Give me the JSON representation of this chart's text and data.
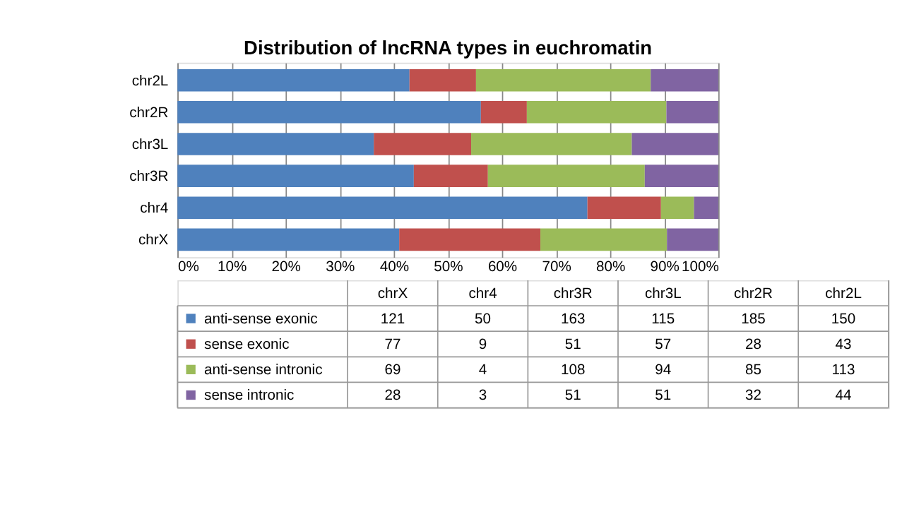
{
  "chart_data": {
    "type": "bar",
    "orientation": "horizontal",
    "stacked": true,
    "title": "Distribution of lncRNA types in euchromatin",
    "categories": [
      "chr2L",
      "chr2R",
      "chr3L",
      "chr3R",
      "chr4",
      "chrX"
    ],
    "series": [
      {
        "name": "anti-sense exonic",
        "color": "#4f81bd",
        "values": [
          42.9,
          56.1,
          36.3,
          43.7,
          75.8,
          41.0
        ]
      },
      {
        "name": "sense exonic",
        "color": "#c0504d",
        "values": [
          12.3,
          8.5,
          18.0,
          13.7,
          13.6,
          26.1
        ]
      },
      {
        "name": "anti-sense intronic",
        "color": "#9bbb59",
        "values": [
          32.3,
          25.8,
          29.7,
          29.0,
          6.1,
          23.4
        ]
      },
      {
        "name": "sense intronic",
        "color": "#8064a2",
        "values": [
          12.5,
          9.6,
          16.0,
          13.6,
          4.5,
          9.5
        ]
      }
    ],
    "annotations": [
      "121",
      "50",
      "163",
      "115",
      "185",
      "150",
      "77",
      "9",
      "51",
      "57",
      "28",
      "43",
      "69",
      "4",
      "108",
      "94",
      "85",
      "113",
      "28",
      "3",
      "51",
      "51",
      "32",
      "44"
    ],
    "xlim": [
      0,
      100
    ],
    "xticks": [
      {
        "value": 0,
        "label": "0%"
      },
      {
        "value": 10,
        "label": "10%"
      },
      {
        "value": 20,
        "label": "20%"
      },
      {
        "value": 30,
        "label": "30%"
      },
      {
        "value": 40,
        "label": "40%"
      },
      {
        "value": 50,
        "label": "50%"
      },
      {
        "value": 60,
        "label": "60%"
      },
      {
        "value": 70,
        "label": "70%"
      },
      {
        "value": 80,
        "label": "80%"
      },
      {
        "value": 90,
        "label": "90%"
      },
      {
        "value": 100,
        "label": "100%"
      }
    ],
    "grid": "x",
    "legend": "bottom"
  }
}
